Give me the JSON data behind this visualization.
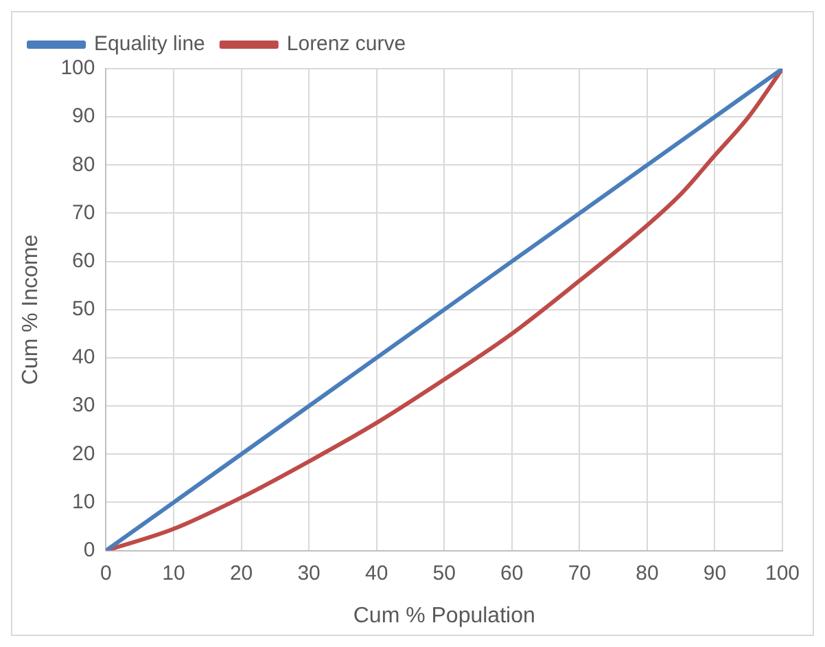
{
  "chart_data": {
    "type": "line",
    "xlabel": "Cum % Population",
    "ylabel": "Cum % Income",
    "xlim": [
      0,
      100
    ],
    "xticks": [
      0,
      10,
      20,
      30,
      40,
      50,
      60,
      70,
      80,
      90,
      100
    ],
    "ylim": [
      0,
      100
    ],
    "yticks": [
      0,
      10,
      20,
      30,
      40,
      50,
      60,
      70,
      80,
      90,
      100
    ],
    "grid": true,
    "legend": "top left",
    "marker": "none",
    "line_style": "solid",
    "series": [
      {
        "name": "Equality line",
        "color": "#4a7ebb",
        "x": [
          0,
          100
        ],
        "values": [
          0,
          100
        ]
      },
      {
        "name": "Lorenz curve",
        "color": "#be4b48",
        "x": [
          0,
          10,
          20,
          30,
          40,
          50,
          60,
          70,
          80,
          85,
          90,
          95,
          100
        ],
        "values": [
          0,
          4.5,
          11,
          18.5,
          26.5,
          35.5,
          45,
          56,
          67.5,
          74,
          82,
          90,
          100
        ]
      }
    ]
  }
}
